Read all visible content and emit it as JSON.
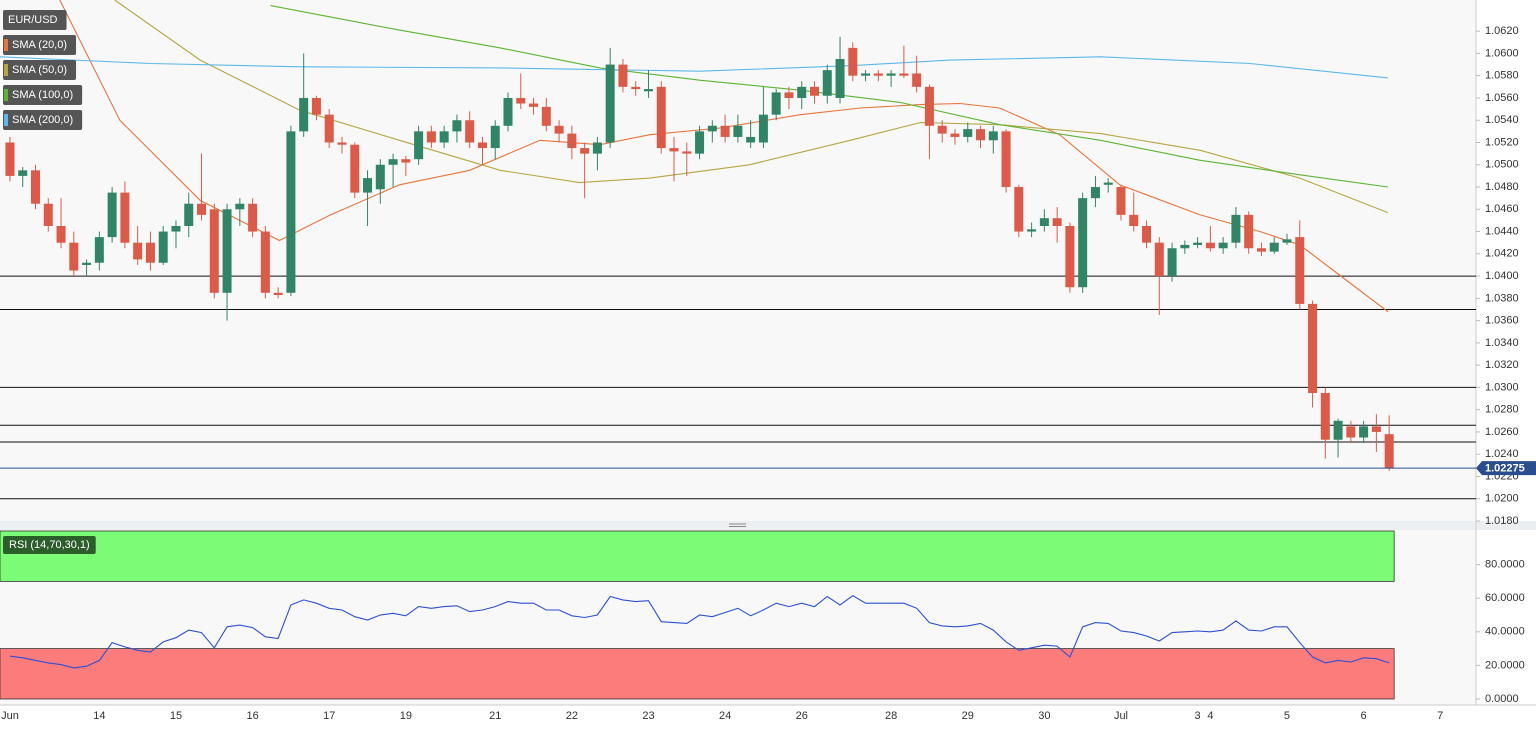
{
  "chart_data": {
    "type": "candlestick",
    "symbol": "EUR/USD",
    "up_color": "#2f8566",
    "down_color": "#de5a48",
    "grid": true,
    "xlim": [
      -0.78,
      114.8
    ],
    "xticks": [
      {
        "value": 0,
        "label": "Jun"
      },
      {
        "value": 7,
        "label": "14"
      },
      {
        "value": 13,
        "label": "15"
      },
      {
        "value": 19,
        "label": "16"
      },
      {
        "value": 25,
        "label": "17"
      },
      {
        "value": 31,
        "label": "19"
      },
      {
        "value": 38,
        "label": "21"
      },
      {
        "value": 44,
        "label": "22"
      },
      {
        "value": 50,
        "label": "23"
      },
      {
        "value": 56,
        "label": "24"
      },
      {
        "value": 62,
        "label": "26"
      },
      {
        "value": 69,
        "label": "28"
      },
      {
        "value": 75,
        "label": "29"
      },
      {
        "value": 81,
        "label": "30"
      },
      {
        "value": 87,
        "label": "Jul"
      },
      {
        "value": 93,
        "label": "3"
      },
      {
        "value": 94,
        "label": "4"
      },
      {
        "value": 100,
        "label": "5"
      },
      {
        "value": 106,
        "label": "6"
      },
      {
        "value": 112,
        "label": "7"
      }
    ],
    "ylim": [
      1.018,
      1.0648
    ],
    "yticks": [
      {
        "value": 1.018,
        "label": "1.0180"
      },
      {
        "value": 1.02,
        "label": "1.0200"
      },
      {
        "value": 1.022,
        "label": "1.0220"
      },
      {
        "value": 1.024,
        "label": "1.0240"
      },
      {
        "value": 1.026,
        "label": "1.0260"
      },
      {
        "value": 1.028,
        "label": "1.0280"
      },
      {
        "value": 1.03,
        "label": "1.0300"
      },
      {
        "value": 1.032,
        "label": "1.0320"
      },
      {
        "value": 1.034,
        "label": "1.0340"
      },
      {
        "value": 1.036,
        "label": "1.0360"
      },
      {
        "value": 1.038,
        "label": "1.0380"
      },
      {
        "value": 1.04,
        "label": "1.0400"
      },
      {
        "value": 1.042,
        "label": "1.0420"
      },
      {
        "value": 1.044,
        "label": "1.0440"
      },
      {
        "value": 1.046,
        "label": "1.0460"
      },
      {
        "value": 1.048,
        "label": "1.0480"
      },
      {
        "value": 1.05,
        "label": "1.0500"
      },
      {
        "value": 1.052,
        "label": "1.0520"
      },
      {
        "value": 1.054,
        "label": "1.0540"
      },
      {
        "value": 1.056,
        "label": "1.0560"
      },
      {
        "value": 1.058,
        "label": "1.0580"
      },
      {
        "value": 1.06,
        "label": "1.0600"
      },
      {
        "value": 1.062,
        "label": "1.0620"
      }
    ],
    "candles": [
      [
        1.052,
        1.0525,
        1.0485,
        1.049
      ],
      [
        1.049,
        1.0498,
        1.048,
        1.0495
      ],
      [
        1.0495,
        1.05,
        1.046,
        1.0465
      ],
      [
        1.0465,
        1.047,
        1.044,
        1.0445
      ],
      [
        1.0445,
        1.047,
        1.0425,
        1.043
      ],
      [
        1.043,
        1.044,
        1.04,
        1.0405
      ],
      [
        1.041,
        1.0415,
        1.04,
        1.0412
      ],
      [
        1.0412,
        1.044,
        1.0405,
        1.0435
      ],
      [
        1.0435,
        1.048,
        1.043,
        1.0475
      ],
      [
        1.0475,
        1.0485,
        1.0425,
        1.043
      ],
      [
        1.043,
        1.0445,
        1.041,
        1.0415
      ],
      [
        1.043,
        1.044,
        1.0405,
        1.0412
      ],
      [
        1.0412,
        1.0445,
        1.041,
        1.044
      ],
      [
        1.044,
        1.045,
        1.0425,
        1.0445
      ],
      [
        1.0445,
        1.0475,
        1.0435,
        1.0465
      ],
      [
        1.0465,
        1.051,
        1.045,
        1.0455
      ],
      [
        1.046,
        1.0465,
        1.038,
        1.0385
      ],
      [
        1.0385,
        1.0465,
        1.036,
        1.046
      ],
      [
        1.046,
        1.047,
        1.0445,
        1.0465
      ],
      [
        1.0465,
        1.047,
        1.0435,
        1.044
      ],
      [
        1.044,
        1.0445,
        1.038,
        1.0385
      ],
      [
        1.0385,
        1.039,
        1.038,
        1.0383
      ],
      [
        1.0385,
        1.0535,
        1.0382,
        1.053
      ],
      [
        1.053,
        1.06,
        1.0525,
        1.056
      ],
      [
        1.056,
        1.0562,
        1.054,
        1.0545
      ],
      [
        1.0545,
        1.055,
        1.0515,
        1.052
      ],
      [
        1.052,
        1.0525,
        1.051,
        1.0518
      ],
      [
        1.0518,
        1.052,
        1.047,
        1.0475
      ],
      [
        1.0475,
        1.0495,
        1.0445,
        1.0488
      ],
      [
        1.0478,
        1.0505,
        1.0465,
        1.05
      ],
      [
        1.05,
        1.051,
        1.048,
        1.0505
      ],
      [
        1.0505,
        1.0508,
        1.049,
        1.0502
      ],
      [
        1.0505,
        1.0535,
        1.05,
        1.053
      ],
      [
        1.053,
        1.0535,
        1.0515,
        1.052
      ],
      [
        1.052,
        1.0535,
        1.0515,
        1.053
      ],
      [
        1.053,
        1.0545,
        1.052,
        1.054
      ],
      [
        1.054,
        1.0548,
        1.0515,
        1.052
      ],
      [
        1.052,
        1.0525,
        1.05,
        1.0515
      ],
      [
        1.0515,
        1.054,
        1.0505,
        1.0535
      ],
      [
        1.0535,
        1.0565,
        1.053,
        1.056
      ],
      [
        1.056,
        1.0582,
        1.055,
        1.0555
      ],
      [
        1.0555,
        1.056,
        1.0545,
        1.0552
      ],
      [
        1.0552,
        1.056,
        1.053,
        1.0535
      ],
      [
        1.0535,
        1.054,
        1.052,
        1.0528
      ],
      [
        1.0528,
        1.0535,
        1.0505,
        1.0515
      ],
      [
        1.0515,
        1.052,
        1.047,
        1.051
      ],
      [
        1.051,
        1.0525,
        1.0495,
        1.052
      ],
      [
        1.052,
        1.0605,
        1.0515,
        1.059
      ],
      [
        1.059,
        1.0595,
        1.0565,
        1.057
      ],
      [
        1.057,
        1.0575,
        1.0562,
        1.0568
      ],
      [
        1.0566,
        1.0585,
        1.056,
        1.0568
      ],
      [
        1.057,
        1.0575,
        1.051,
        1.0515
      ],
      [
        1.0515,
        1.0525,
        1.0485,
        1.0512
      ],
      [
        1.0512,
        1.052,
        1.049,
        1.051
      ],
      [
        1.051,
        1.0535,
        1.0505,
        1.053
      ],
      [
        1.053,
        1.054,
        1.052,
        1.0535
      ],
      [
        1.0535,
        1.0545,
        1.052,
        1.0525
      ],
      [
        1.0525,
        1.0545,
        1.052,
        1.0535
      ],
      [
        1.052,
        1.054,
        1.0515,
        1.0525
      ],
      [
        1.052,
        1.057,
        1.0515,
        1.0545
      ],
      [
        1.0545,
        1.0568,
        1.054,
        1.0565
      ],
      [
        1.0565,
        1.057,
        1.055,
        1.056
      ],
      [
        1.056,
        1.0575,
        1.055,
        1.057
      ],
      [
        1.057,
        1.0575,
        1.0555,
        1.0562
      ],
      [
        1.0562,
        1.059,
        1.0555,
        1.0585
      ],
      [
        1.056,
        1.0615,
        1.0555,
        1.0595
      ],
      [
        1.0605,
        1.061,
        1.0575,
        1.058
      ],
      [
        1.058,
        1.0585,
        1.0575,
        1.0582
      ],
      [
        1.0582,
        1.0585,
        1.0575,
        1.058
      ],
      [
        1.058,
        1.0585,
        1.057,
        1.0582
      ],
      [
        1.0582,
        1.0607,
        1.0578,
        1.058
      ],
      [
        1.0582,
        1.0598,
        1.0565,
        1.057
      ],
      [
        1.057,
        1.0572,
        1.0505,
        1.0535
      ],
      [
        1.0535,
        1.054,
        1.052,
        1.0528
      ],
      [
        1.0528,
        1.0532,
        1.0518,
        1.0525
      ],
      [
        1.0525,
        1.0538,
        1.052,
        1.0532
      ],
      [
        1.0532,
        1.0535,
        1.0515,
        1.0522
      ],
      [
        1.0522,
        1.0535,
        1.051,
        1.053
      ],
      [
        1.053,
        1.0532,
        1.0475,
        1.048
      ],
      [
        1.048,
        1.0482,
        1.0435,
        1.044
      ],
      [
        1.044,
        1.0448,
        1.0435,
        1.0442
      ],
      [
        1.0445,
        1.046,
        1.044,
        1.0452
      ],
      [
        1.0452,
        1.0462,
        1.043,
        1.0445
      ],
      [
        1.0445,
        1.0448,
        1.0385,
        1.039
      ],
      [
        1.039,
        1.0475,
        1.0385,
        1.047
      ],
      [
        1.047,
        1.049,
        1.0462,
        1.048
      ],
      [
        1.0482,
        1.0488,
        1.0475,
        1.0484
      ],
      [
        1.048,
        1.0482,
        1.045,
        1.0455
      ],
      [
        1.0455,
        1.0475,
        1.044,
        1.0445
      ],
      [
        1.0445,
        1.045,
        1.0425,
        1.043
      ],
      [
        1.043,
        1.0435,
        1.0365,
        1.04
      ],
      [
        1.04,
        1.043,
        1.0395,
        1.0425
      ],
      [
        1.0425,
        1.0432,
        1.042,
        1.0428
      ],
      [
        1.0428,
        1.0435,
        1.0425,
        1.043
      ],
      [
        1.043,
        1.0445,
        1.0422,
        1.0425
      ],
      [
        1.0425,
        1.0435,
        1.042,
        1.043
      ],
      [
        1.043,
        1.0462,
        1.0425,
        1.0455
      ],
      [
        1.0455,
        1.0458,
        1.042,
        1.0425
      ],
      [
        1.0425,
        1.043,
        1.0418,
        1.0422
      ],
      [
        1.0422,
        1.0435,
        1.042,
        1.043
      ],
      [
        1.043,
        1.0438,
        1.0428,
        1.0433
      ],
      [
        1.0435,
        1.045,
        1.037,
        1.0375
      ],
      [
        1.0375,
        1.0378,
        1.0282,
        1.0295
      ],
      [
        1.0295,
        1.03,
        1.0236,
        1.0253
      ],
      [
        1.0253,
        1.0272,
        1.0237,
        1.027
      ],
      [
        1.0265,
        1.027,
        1.025,
        1.0255
      ],
      [
        1.0255,
        1.027,
        1.025,
        1.0265
      ],
      [
        1.0265,
        1.0276,
        1.0242,
        1.026
      ],
      [
        1.0258,
        1.0275,
        1.0225,
        1.02275
      ]
    ],
    "sma": [
      {
        "name": "SMA (20,0)",
        "color": "#e8743b",
        "x": [
          3.9,
          8.6,
          14.9,
          21.1,
          25.1,
          30.5,
          36.0,
          41.5,
          46.2,
          50.1,
          55.6,
          61.9,
          66.6,
          71.3,
          74.4,
          77.5,
          82.2,
          86.9,
          93.2,
          97.9,
          101.0,
          104.1,
          107.9
        ],
        "values": [
          1.0648,
          1.054,
          1.0468,
          1.0432,
          1.0455,
          1.0482,
          1.0495,
          1.0522,
          1.0518,
          1.0527,
          1.0533,
          1.0545,
          1.0551,
          1.0554,
          1.0555,
          1.0551,
          1.0527,
          1.0482,
          1.0455,
          1.044,
          1.0428,
          1.0401,
          1.0368
        ]
      },
      {
        "name": "SMA (50,0)",
        "color": "#b5a642",
        "x": [
          8.2,
          14.9,
          22.7,
          30.5,
          38.4,
          44.6,
          50.1,
          57.9,
          65.8,
          71.3,
          77.5,
          85.4,
          93.2,
          101.0,
          107.9
        ],
        "values": [
          1.0648,
          1.0594,
          1.0549,
          1.0522,
          1.0495,
          1.0484,
          1.0488,
          1.05,
          1.0522,
          1.0538,
          1.0536,
          1.0528,
          1.0513,
          1.0488,
          1.0457
        ]
      },
      {
        "name": "SMA (100,0)",
        "color": "#5ab531",
        "x": [
          20.4,
          30.5,
          38.4,
          46.2,
          54.0,
          61.9,
          69.7,
          77.5,
          85.4,
          93.2,
          101.0,
          107.9
        ],
        "values": [
          1.0643,
          1.0621,
          1.0605,
          1.0587,
          1.0576,
          1.0567,
          1.0556,
          1.0536,
          1.0522,
          1.0504,
          1.0491,
          1.048
        ]
      },
      {
        "name": "SMA (200,0)",
        "color": "#5bb8e8",
        "x": [
          -0.78,
          11.0,
          22.7,
          38.4,
          54.0,
          65.8,
          73.6,
          85.4,
          97.1,
          107.9
        ],
        "values": [
          1.0597,
          1.0591,
          1.0588,
          1.0587,
          1.0584,
          1.0589,
          1.0594,
          1.0597,
          1.0591,
          1.0578
        ]
      }
    ],
    "levels": [
      1.04,
      1.037,
      1.03,
      1.0266,
      1.0251,
      1.02
    ],
    "last_price": {
      "value": 1.02275,
      "label": "1.02275"
    },
    "rsi": {
      "name": "RSI (14,70,30,1)",
      "color": "#2d4fd6",
      "overbought": 70,
      "oversold": 30,
      "ylim": [
        0,
        100
      ],
      "yticks": [
        {
          "value": 0,
          "label": "0.0000"
        },
        {
          "value": 20,
          "label": "20.0000"
        },
        {
          "value": 40,
          "label": "40.0000"
        },
        {
          "value": 60,
          "label": "60.0000"
        },
        {
          "value": 80,
          "label": "80.0000"
        }
      ],
      "values": [
        25.5,
        24.5,
        23,
        21.5,
        20.5,
        18.5,
        19.5,
        23,
        33.5,
        31,
        29,
        28,
        34,
        36.5,
        41,
        39.5,
        30.5,
        43,
        44,
        42.5,
        37,
        36,
        56,
        59,
        57,
        54,
        53,
        49,
        47,
        50,
        51,
        49.5,
        55,
        54,
        55,
        55.5,
        52,
        53,
        55,
        58,
        57,
        57,
        53,
        53,
        49.5,
        48.5,
        50,
        61,
        59,
        58,
        58.5,
        46,
        45.5,
        45,
        50,
        49,
        51.5,
        54,
        49.5,
        53,
        57,
        55,
        57,
        55,
        61,
        56,
        61.5,
        57,
        57,
        57,
        57,
        54,
        45.5,
        43.5,
        43,
        43.5,
        45,
        41,
        34,
        29,
        30.5,
        32,
        31.5,
        25,
        43,
        45.5,
        45,
        40.5,
        39.5,
        37.5,
        34.5,
        39.5,
        40,
        40.5,
        40,
        41,
        46.5,
        41,
        40.5,
        43,
        43,
        33.5,
        25,
        21.5,
        23,
        22,
        24.5,
        24,
        21.5
      ]
    }
  }
}
